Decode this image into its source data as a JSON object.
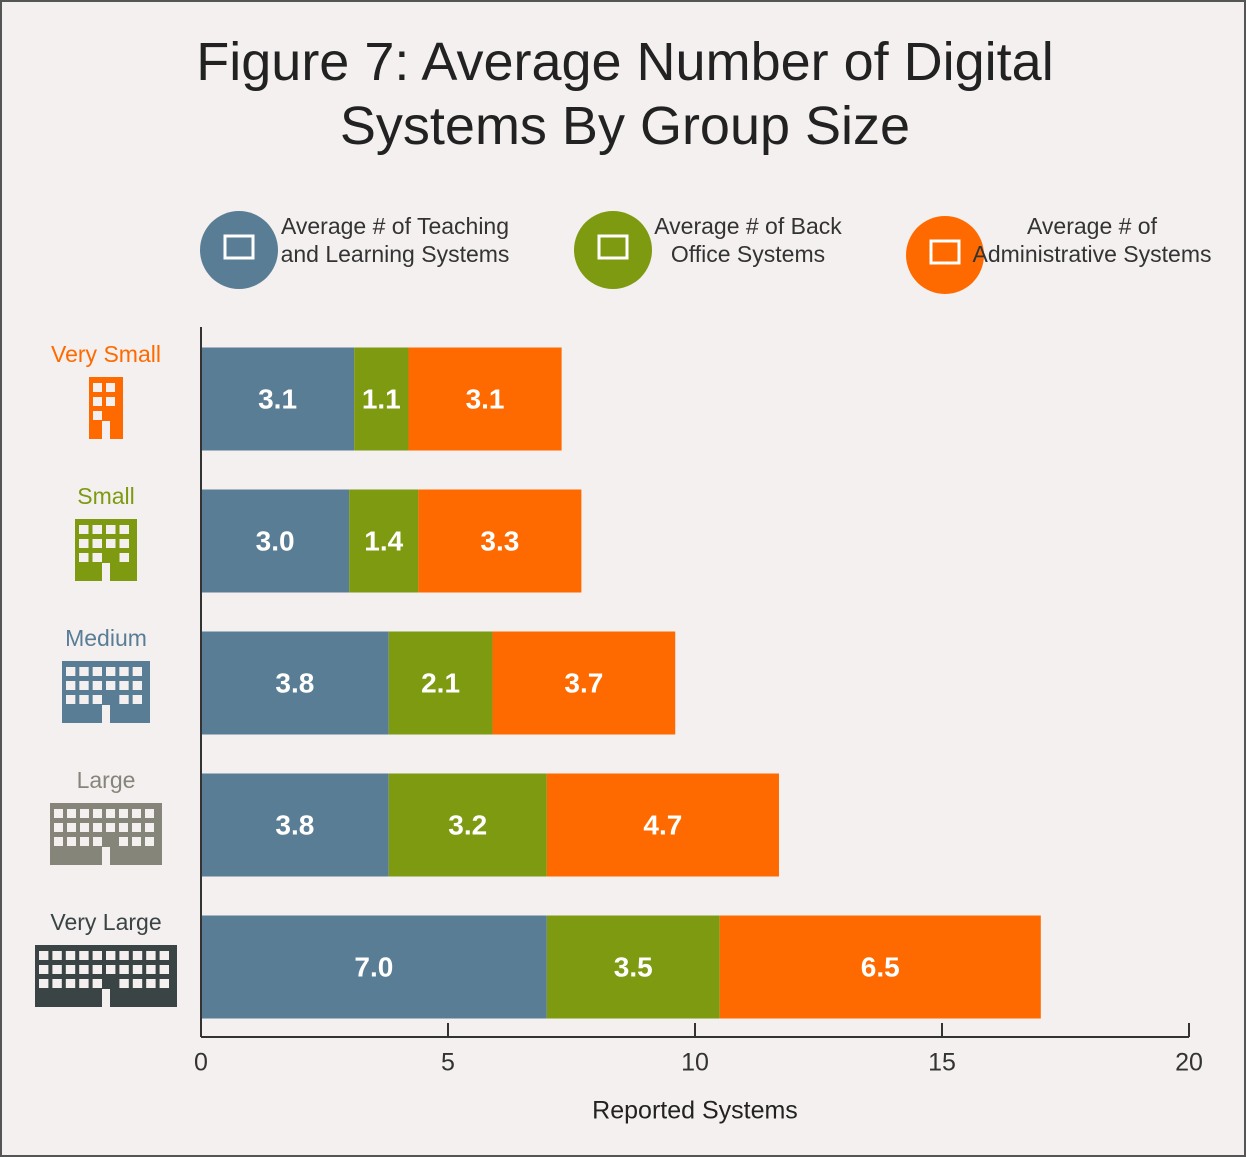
{
  "chart_data": {
    "type": "stacked_barh",
    "title": "Figure 7: Average Number of Digital Systems By Group Size",
    "categories": [
      "Very Small",
      "Small",
      "Medium",
      "Large",
      "Very Large"
    ],
    "category_colors": [
      "#ff6a00",
      "#7d9a10",
      "#5a7d96",
      "#85857a",
      "#3a4444"
    ],
    "series": [
      {
        "name": "Average # of Teaching and Learning Systems",
        "color": "#5a7d96",
        "values": [
          3.1,
          3.0,
          3.8,
          3.8,
          7.0
        ],
        "value_labels": [
          "3.1",
          "3.0",
          "3.8",
          "3.8",
          "7.0"
        ]
      },
      {
        "name": "Average # of Back Office Systems",
        "color": "#7d9a10",
        "values": [
          1.1,
          1.4,
          2.1,
          3.2,
          3.5
        ],
        "value_labels": [
          "1.1",
          "1.4",
          "2.1",
          "3.2",
          "3.5"
        ]
      },
      {
        "name": "Average # of Administrative Systems",
        "color": "#ff6a00",
        "values": [
          3.1,
          3.3,
          3.7,
          4.7,
          6.5
        ],
        "value_labels": [
          "3.1",
          "3.3",
          "3.7",
          "4.7",
          "6.5"
        ]
      }
    ],
    "xlabel": "Reported Systems",
    "xlim": [
      0,
      20
    ],
    "xticks": [
      0,
      5,
      10,
      15,
      20
    ]
  }
}
